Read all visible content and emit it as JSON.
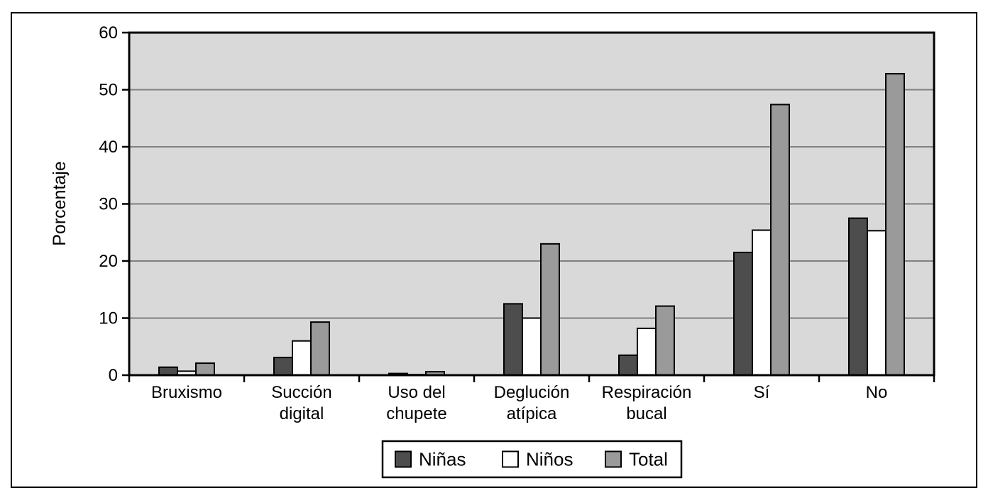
{
  "figure": {
    "background": "#ffffff",
    "border_color": "#000000"
  },
  "chart_data": {
    "type": "bar",
    "title": "",
    "xlabel": "",
    "ylabel": "Porcentaje",
    "ylim": [
      0,
      60
    ],
    "yticks": [
      0,
      10,
      20,
      30,
      40,
      50,
      60
    ],
    "grid": true,
    "plot_background": "#d9d9d9",
    "gridline_color": "#808080",
    "axis_color": "#000000",
    "bar_border_color": "#000000",
    "categories": [
      {
        "label_lines": [
          "Bruxismo"
        ]
      },
      {
        "label_lines": [
          "Succión",
          "digital"
        ]
      },
      {
        "label_lines": [
          "Uso del",
          "chupete"
        ]
      },
      {
        "label_lines": [
          "Deglución",
          "atípica"
        ]
      },
      {
        "label_lines": [
          "Respiración",
          "bucal"
        ]
      },
      {
        "label_lines": [
          "Sí"
        ]
      },
      {
        "label_lines": [
          "No"
        ]
      }
    ],
    "series": [
      {
        "name": "Niñas",
        "color": "#4d4d4d",
        "values": [
          1.4,
          3.1,
          0.3,
          12.5,
          3.5,
          21.5,
          27.5
        ]
      },
      {
        "name": "Niños",
        "color": "#ffffff",
        "values": [
          0.7,
          6.0,
          0.1,
          10.0,
          8.2,
          25.4,
          25.3
        ]
      },
      {
        "name": "Total",
        "color": "#9a9a9a",
        "values": [
          2.1,
          9.3,
          0.6,
          23.0,
          12.1,
          47.4,
          52.8
        ]
      }
    ],
    "legend": {
      "position": "bottom",
      "entries": [
        "Niñas",
        "Niños",
        "Total"
      ]
    }
  }
}
